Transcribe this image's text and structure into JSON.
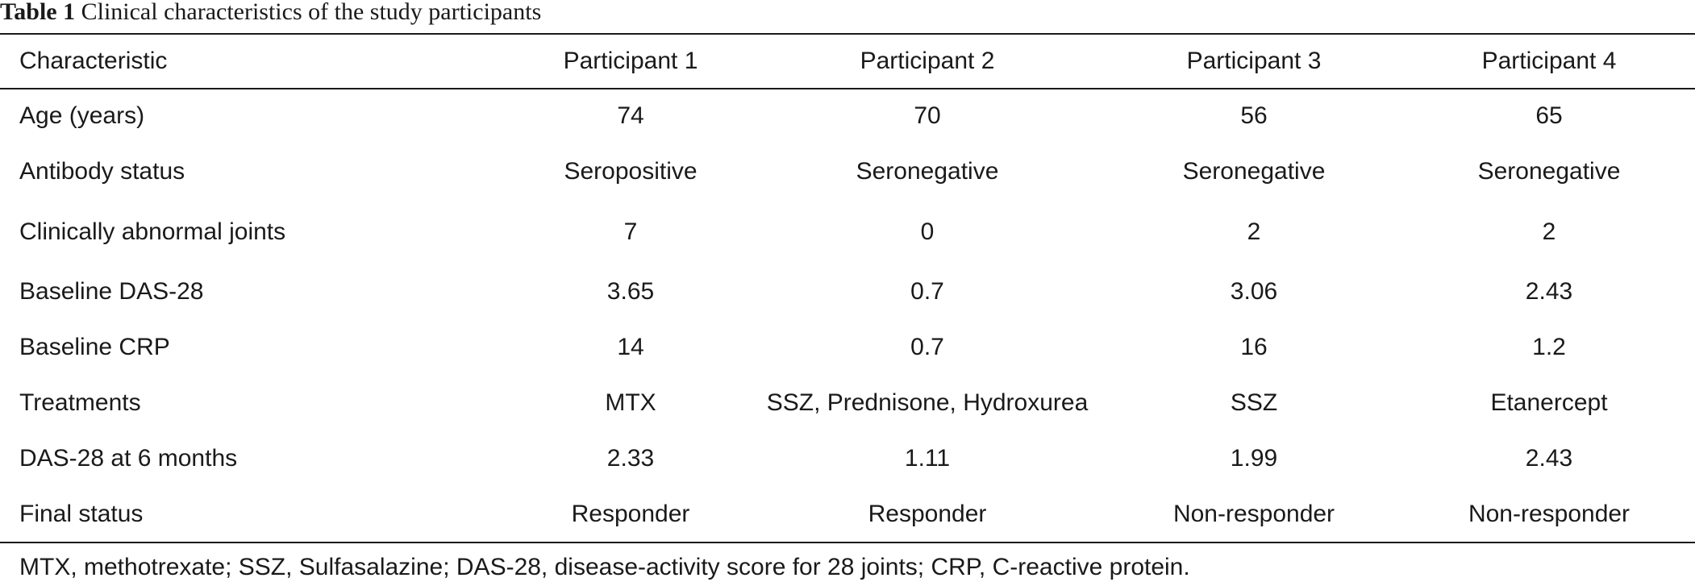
{
  "caption": {
    "label": "Table 1",
    "title": "Clinical characteristics of the study participants"
  },
  "table": {
    "headers": [
      "Characteristic",
      "Participant 1",
      "Participant 2",
      "Participant 3",
      "Participant 4"
    ],
    "rows": [
      [
        "Age (years)",
        "74",
        "70",
        "56",
        "65"
      ],
      [
        "Antibody status",
        "Seropositive",
        "Seronegative",
        "Seronegative",
        "Seronegative"
      ],
      [
        "Clinically abnormal joints",
        "7",
        "0",
        "2",
        "2"
      ],
      [
        "Baseline DAS-28",
        "3.65",
        "0.7",
        "3.06",
        "2.43"
      ],
      [
        "Baseline CRP",
        "14",
        "0.7",
        "16",
        "1.2"
      ],
      [
        "Treatments",
        "MTX",
        "SSZ, Prednisone, Hydroxurea",
        "SSZ",
        "Etanercept"
      ],
      [
        "DAS-28 at 6 months",
        "2.33",
        "1.11",
        "1.99",
        "2.43"
      ],
      [
        "Final status",
        "Responder",
        "Responder",
        "Non-responder",
        "Non-responder"
      ]
    ]
  },
  "footnote": "MTX, methotrexate; SSZ, Sulfasalazine; DAS-28, disease-activity score for 28 joints; CRP, C-reactive protein."
}
